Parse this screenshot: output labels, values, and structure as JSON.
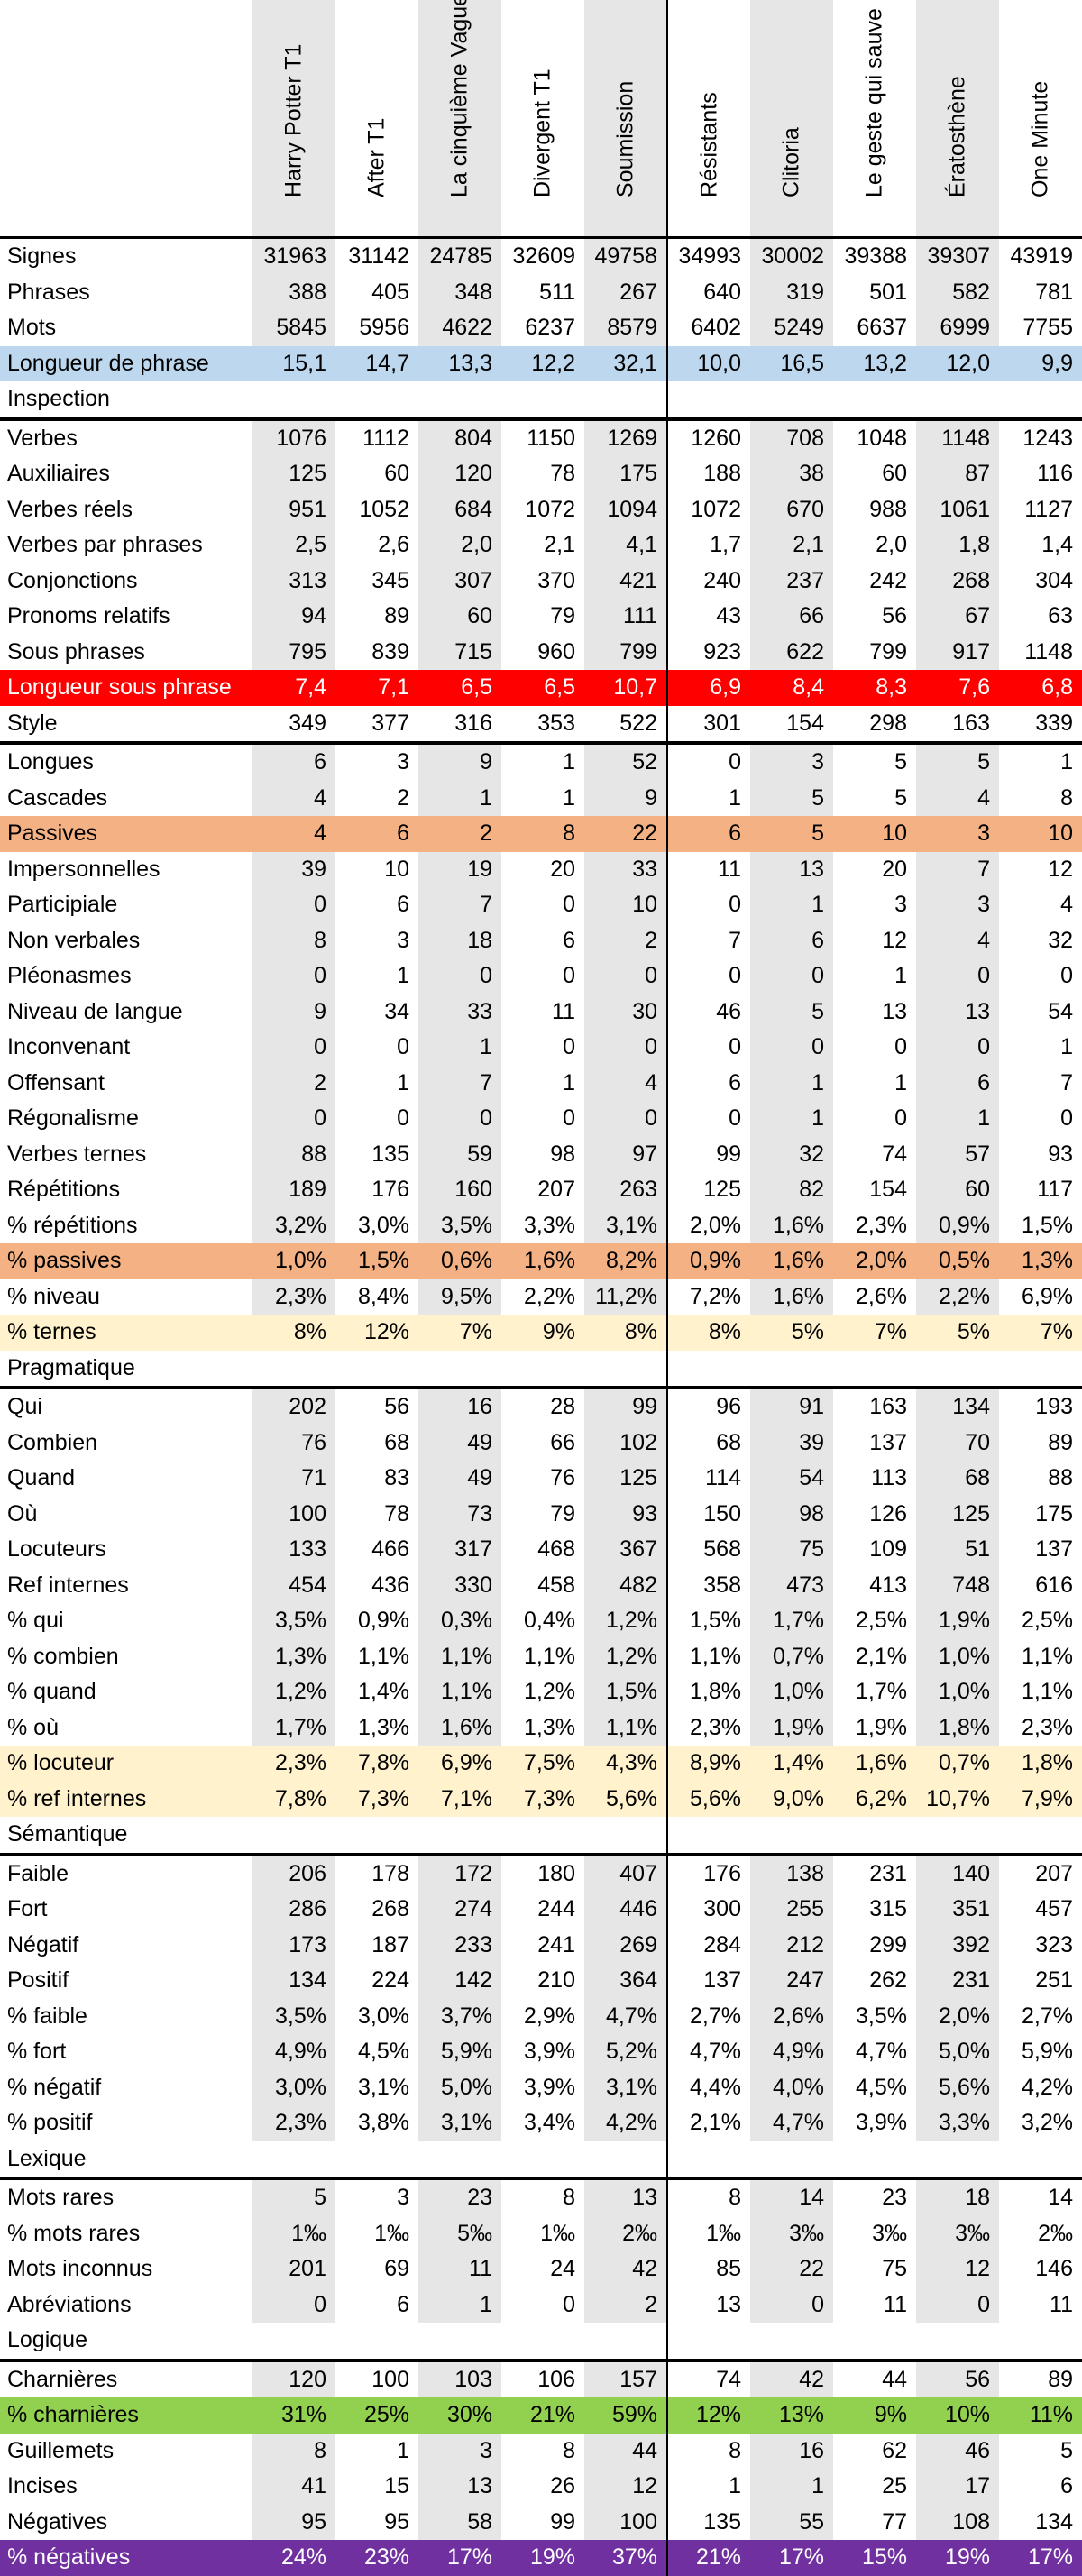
{
  "columns": [
    "Harry Potter T1",
    "After T1",
    "La cinquième Vague",
    "Divergent T1",
    "Soumission",
    "Résistants",
    "Clitoria",
    "Le geste qui sauve",
    "Ératosthène",
    "One Minute"
  ],
  "colors": {
    "blue": "#bdd7ee",
    "red": "#ff0000",
    "orange": "#f4b183",
    "yellow": "#fff2cc",
    "green": "#92d050",
    "purple": "#7030a0",
    "shade": "#e6e6e6"
  },
  "rows": [
    {
      "label": "Signes",
      "values": [
        "31963",
        "31142",
        "24785",
        "32609",
        "49758",
        "34993",
        "30002",
        "39388",
        "39307",
        "43919"
      ],
      "style": "topline"
    },
    {
      "label": "Phrases",
      "values": [
        "388",
        "405",
        "348",
        "511",
        "267",
        "640",
        "319",
        "501",
        "582",
        "781"
      ]
    },
    {
      "label": "Mots",
      "values": [
        "5845",
        "5956",
        "4622",
        "6237",
        "8579",
        "6402",
        "5249",
        "6637",
        "6999",
        "7755"
      ]
    },
    {
      "label": "Longueur de phrase",
      "values": [
        "15,1",
        "14,7",
        "13,3",
        "12,2",
        "32,1",
        "10,0",
        "16,5",
        "13,2",
        "12,0",
        "9,9"
      ],
      "style": "hl-blue"
    },
    {
      "label": "Inspection",
      "values": [
        "",
        "",
        "",
        "",
        "",
        "",
        "",
        "",
        "",
        ""
      ],
      "style": "section"
    },
    {
      "label": "Verbes",
      "values": [
        "1076",
        "1112",
        "804",
        "1150",
        "1269",
        "1260",
        "708",
        "1048",
        "1148",
        "1243"
      ]
    },
    {
      "label": "Auxiliaires",
      "values": [
        "125",
        "60",
        "120",
        "78",
        "175",
        "188",
        "38",
        "60",
        "87",
        "116"
      ]
    },
    {
      "label": "Verbes réels",
      "values": [
        "951",
        "1052",
        "684",
        "1072",
        "1094",
        "1072",
        "670",
        "988",
        "1061",
        "1127"
      ]
    },
    {
      "label": "Verbes par phrases",
      "values": [
        "2,5",
        "2,6",
        "2,0",
        "2,1",
        "4,1",
        "1,7",
        "2,1",
        "2,0",
        "1,8",
        "1,4"
      ]
    },
    {
      "label": "Conjonctions",
      "values": [
        "313",
        "345",
        "307",
        "370",
        "421",
        "240",
        "237",
        "242",
        "268",
        "304"
      ]
    },
    {
      "label": "Pronoms relatifs",
      "values": [
        "94",
        "89",
        "60",
        "79",
        "111",
        "43",
        "66",
        "56",
        "67",
        "63"
      ]
    },
    {
      "label": "Sous phrases",
      "values": [
        "795",
        "839",
        "715",
        "960",
        "799",
        "923",
        "622",
        "799",
        "917",
        "1148"
      ]
    },
    {
      "label": "Longueur sous phrase",
      "values": [
        "7,4",
        "7,1",
        "6,5",
        "6,5",
        "10,7",
        "6,9",
        "8,4",
        "8,3",
        "7,6",
        "6,8"
      ],
      "style": "hl-red"
    },
    {
      "label": "Style",
      "values": [
        "349",
        "377",
        "316",
        "353",
        "522",
        "301",
        "154",
        "298",
        "163",
        "339"
      ],
      "style": "section"
    },
    {
      "label": "Longues",
      "values": [
        "6",
        "3",
        "9",
        "1",
        "52",
        "0",
        "3",
        "5",
        "5",
        "1"
      ]
    },
    {
      "label": "Cascades",
      "values": [
        "4",
        "2",
        "1",
        "1",
        "9",
        "1",
        "5",
        "5",
        "4",
        "8"
      ]
    },
    {
      "label": "Passives",
      "values": [
        "4",
        "6",
        "2",
        "8",
        "22",
        "6",
        "5",
        "10",
        "3",
        "10"
      ],
      "style": "hl-orange"
    },
    {
      "label": "Impersonnelles",
      "values": [
        "39",
        "10",
        "19",
        "20",
        "33",
        "11",
        "13",
        "20",
        "7",
        "12"
      ]
    },
    {
      "label": "Participiale",
      "values": [
        "0",
        "6",
        "7",
        "0",
        "10",
        "0",
        "1",
        "3",
        "3",
        "4"
      ]
    },
    {
      "label": "Non verbales",
      "values": [
        "8",
        "3",
        "18",
        "6",
        "2",
        "7",
        "6",
        "12",
        "4",
        "32"
      ]
    },
    {
      "label": "Pléonasmes",
      "values": [
        "0",
        "1",
        "0",
        "0",
        "0",
        "0",
        "0",
        "1",
        "0",
        "0"
      ]
    },
    {
      "label": "Niveau de langue",
      "values": [
        "9",
        "34",
        "33",
        "11",
        "30",
        "46",
        "5",
        "13",
        "13",
        "54"
      ]
    },
    {
      "label": "Inconvenant",
      "values": [
        "0",
        "0",
        "1",
        "0",
        "0",
        "0",
        "0",
        "0",
        "0",
        "1"
      ]
    },
    {
      "label": "Offensant",
      "values": [
        "2",
        "1",
        "7",
        "1",
        "4",
        "6",
        "1",
        "1",
        "6",
        "7"
      ]
    },
    {
      "label": "Régonalisme",
      "values": [
        "0",
        "0",
        "0",
        "0",
        "0",
        "0",
        "1",
        "0",
        "1",
        "0"
      ]
    },
    {
      "label": "Verbes ternes",
      "values": [
        "88",
        "135",
        "59",
        "98",
        "97",
        "99",
        "32",
        "74",
        "57",
        "93"
      ]
    },
    {
      "label": "Répétitions",
      "values": [
        "189",
        "176",
        "160",
        "207",
        "263",
        "125",
        "82",
        "154",
        "60",
        "117"
      ]
    },
    {
      "label": "% répétitions",
      "values": [
        "3,2%",
        "3,0%",
        "3,5%",
        "3,3%",
        "3,1%",
        "2,0%",
        "1,6%",
        "2,3%",
        "0,9%",
        "1,5%"
      ]
    },
    {
      "label": "% passives",
      "values": [
        "1,0%",
        "1,5%",
        "0,6%",
        "1,6%",
        "8,2%",
        "0,9%",
        "1,6%",
        "2,0%",
        "0,5%",
        "1,3%"
      ],
      "style": "hl-orange"
    },
    {
      "label": "% niveau",
      "values": [
        "2,3%",
        "8,4%",
        "9,5%",
        "2,2%",
        "11,2%",
        "7,2%",
        "1,6%",
        "2,6%",
        "2,2%",
        "6,9%"
      ]
    },
    {
      "label": "% ternes",
      "values": [
        "8%",
        "12%",
        "7%",
        "9%",
        "8%",
        "8%",
        "5%",
        "7%",
        "5%",
        "7%"
      ],
      "style": "hl-yellow"
    },
    {
      "label": "Pragmatique",
      "values": [
        "",
        "",
        "",
        "",
        "",
        "",
        "",
        "",
        "",
        ""
      ],
      "style": "section"
    },
    {
      "label": "Qui",
      "values": [
        "202",
        "56",
        "16",
        "28",
        "99",
        "96",
        "91",
        "163",
        "134",
        "193"
      ]
    },
    {
      "label": "Combien",
      "values": [
        "76",
        "68",
        "49",
        "66",
        "102",
        "68",
        "39",
        "137",
        "70",
        "89"
      ]
    },
    {
      "label": "Quand",
      "values": [
        "71",
        "83",
        "49",
        "76",
        "125",
        "114",
        "54",
        "113",
        "68",
        "88"
      ]
    },
    {
      "label": "Où",
      "values": [
        "100",
        "78",
        "73",
        "79",
        "93",
        "150",
        "98",
        "126",
        "125",
        "175"
      ]
    },
    {
      "label": "Locuteurs",
      "values": [
        "133",
        "466",
        "317",
        "468",
        "367",
        "568",
        "75",
        "109",
        "51",
        "137"
      ]
    },
    {
      "label": "Ref internes",
      "values": [
        "454",
        "436",
        "330",
        "458",
        "482",
        "358",
        "473",
        "413",
        "748",
        "616"
      ]
    },
    {
      "label": "% qui",
      "values": [
        "3,5%",
        "0,9%",
        "0,3%",
        "0,4%",
        "1,2%",
        "1,5%",
        "1,7%",
        "2,5%",
        "1,9%",
        "2,5%"
      ]
    },
    {
      "label": "% combien",
      "values": [
        "1,3%",
        "1,1%",
        "1,1%",
        "1,1%",
        "1,2%",
        "1,1%",
        "0,7%",
        "2,1%",
        "1,0%",
        "1,1%"
      ]
    },
    {
      "label": "% quand",
      "values": [
        "1,2%",
        "1,4%",
        "1,1%",
        "1,2%",
        "1,5%",
        "1,8%",
        "1,0%",
        "1,7%",
        "1,0%",
        "1,1%"
      ]
    },
    {
      "label": "% où",
      "values": [
        "1,7%",
        "1,3%",
        "1,6%",
        "1,3%",
        "1,1%",
        "2,3%",
        "1,9%",
        "1,9%",
        "1,8%",
        "2,3%"
      ]
    },
    {
      "label": "% locuteur",
      "values": [
        "2,3%",
        "7,8%",
        "6,9%",
        "7,5%",
        "4,3%",
        "8,9%",
        "1,4%",
        "1,6%",
        "0,7%",
        "1,8%"
      ],
      "style": "hl-yellow"
    },
    {
      "label": "% ref internes",
      "values": [
        "7,8%",
        "7,3%",
        "7,1%",
        "7,3%",
        "5,6%",
        "5,6%",
        "9,0%",
        "6,2%",
        "10,7%",
        "7,9%"
      ],
      "style": "hl-yellow"
    },
    {
      "label": "Sémantique",
      "values": [
        "",
        "",
        "",
        "",
        "",
        "",
        "",
        "",
        "",
        ""
      ],
      "style": "section"
    },
    {
      "label": "Faible",
      "values": [
        "206",
        "178",
        "172",
        "180",
        "407",
        "176",
        "138",
        "231",
        "140",
        "207"
      ]
    },
    {
      "label": "Fort",
      "values": [
        "286",
        "268",
        "274",
        "244",
        "446",
        "300",
        "255",
        "315",
        "351",
        "457"
      ]
    },
    {
      "label": "Négatif",
      "values": [
        "173",
        "187",
        "233",
        "241",
        "269",
        "284",
        "212",
        "299",
        "392",
        "323"
      ]
    },
    {
      "label": "Positif",
      "values": [
        "134",
        "224",
        "142",
        "210",
        "364",
        "137",
        "247",
        "262",
        "231",
        "251"
      ]
    },
    {
      "label": "% faible",
      "values": [
        "3,5%",
        "3,0%",
        "3,7%",
        "2,9%",
        "4,7%",
        "2,7%",
        "2,6%",
        "3,5%",
        "2,0%",
        "2,7%"
      ]
    },
    {
      "label": "% fort",
      "values": [
        "4,9%",
        "4,5%",
        "5,9%",
        "3,9%",
        "5,2%",
        "4,7%",
        "4,9%",
        "4,7%",
        "5,0%",
        "5,9%"
      ]
    },
    {
      "label": "% négatif",
      "values": [
        "3,0%",
        "3,1%",
        "5,0%",
        "3,9%",
        "3,1%",
        "4,4%",
        "4,0%",
        "4,5%",
        "5,6%",
        "4,2%"
      ]
    },
    {
      "label": "% positif",
      "values": [
        "2,3%",
        "3,8%",
        "3,1%",
        "3,4%",
        "4,2%",
        "2,1%",
        "4,7%",
        "3,9%",
        "3,3%",
        "3,2%"
      ]
    },
    {
      "label": "Lexique",
      "values": [
        "",
        "",
        "",
        "",
        "",
        "",
        "",
        "",
        "",
        ""
      ],
      "style": "section"
    },
    {
      "label": "Mots rares",
      "values": [
        "5",
        "3",
        "23",
        "8",
        "13",
        "8",
        "14",
        "23",
        "18",
        "14"
      ]
    },
    {
      "label": "% mots rares",
      "values": [
        "1‰",
        "1‰",
        "5‰",
        "1‰",
        "2‰",
        "1‰",
        "3‰",
        "3‰",
        "3‰",
        "2‰"
      ]
    },
    {
      "label": "Mots inconnus",
      "values": [
        "201",
        "69",
        "11",
        "24",
        "42",
        "85",
        "22",
        "75",
        "12",
        "146"
      ]
    },
    {
      "label": "Abréviations",
      "values": [
        "0",
        "6",
        "1",
        "0",
        "2",
        "13",
        "0",
        "11",
        "0",
        "11"
      ]
    },
    {
      "label": "Logique",
      "values": [
        "",
        "",
        "",
        "",
        "",
        "",
        "",
        "",
        "",
        ""
      ],
      "style": "section"
    },
    {
      "label": "Charnières",
      "values": [
        "120",
        "100",
        "103",
        "106",
        "157",
        "74",
        "42",
        "44",
        "56",
        "89"
      ]
    },
    {
      "label": "% charnières",
      "values": [
        "31%",
        "25%",
        "30%",
        "21%",
        "59%",
        "12%",
        "13%",
        "9%",
        "10%",
        "11%"
      ],
      "style": "hl-green"
    },
    {
      "label": "Guillemets",
      "values": [
        "8",
        "1",
        "3",
        "8",
        "44",
        "8",
        "16",
        "62",
        "46",
        "5"
      ]
    },
    {
      "label": "Incises",
      "values": [
        "41",
        "15",
        "13",
        "26",
        "12",
        "1",
        "1",
        "25",
        "17",
        "6"
      ]
    },
    {
      "label": "Négatives",
      "values": [
        "95",
        "95",
        "58",
        "99",
        "100",
        "135",
        "55",
        "77",
        "108",
        "134"
      ]
    },
    {
      "label": "% négatives",
      "values": [
        "24%",
        "23%",
        "17%",
        "19%",
        "37%",
        "21%",
        "17%",
        "15%",
        "19%",
        "17%"
      ],
      "style": "hl-purple"
    }
  ]
}
